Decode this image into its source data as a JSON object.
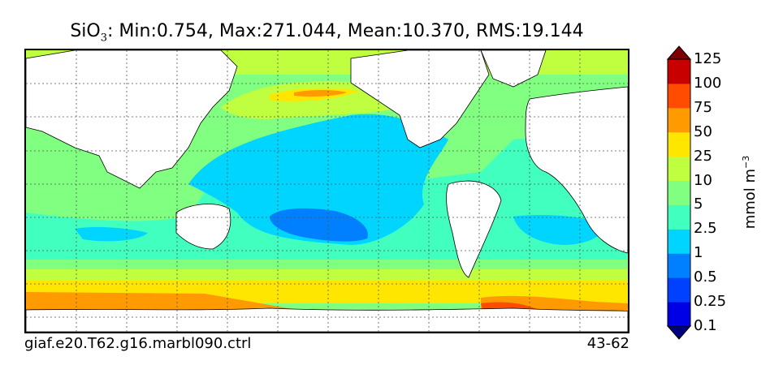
{
  "title": {
    "variable": "SiO",
    "subscript": "3",
    "stats": ": Min:0.754, Max:271.044, Mean:10.370, RMS:19.144"
  },
  "footer": {
    "case_name": "giaf.e20.T62.g16.marbl090.ctrl",
    "years": "43-62"
  },
  "colorbar": {
    "label": "mmol m",
    "label_exponent": "−3",
    "ticks": [
      "0.1",
      "0.25",
      "0.5",
      "1",
      "2.5",
      "5",
      "10",
      "25",
      "50",
      "75",
      "100",
      "125"
    ],
    "colors": [
      "#00007f",
      "#0000e6",
      "#0040ff",
      "#0080ff",
      "#00d5ff",
      "#40ffbf",
      "#80ff80",
      "#bfff40",
      "#ffe600",
      "#ff9a00",
      "#ff4c00",
      "#c80000",
      "#7f0000"
    ],
    "extend": "both"
  },
  "map": {
    "projection": "cylindrical equidistant",
    "gridlines": true,
    "land_color": "#ffffff",
    "coastline_color": "#000000"
  }
}
